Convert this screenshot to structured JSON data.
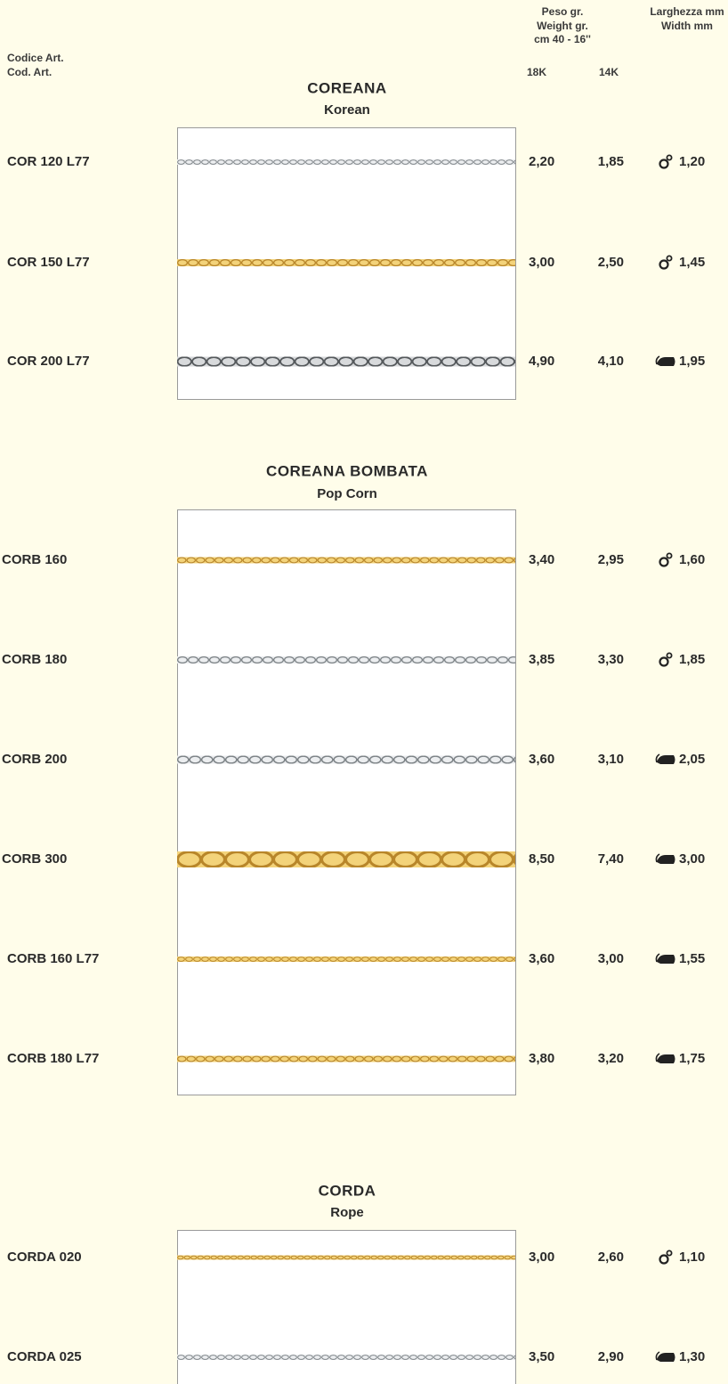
{
  "header": {
    "code_label_it": "Codice Art.",
    "code_label_en": "Cod. Art.",
    "weight_it": "Peso gr.",
    "weight_en": "Weight gr.",
    "length": "cm 40 - 16''",
    "karat_18": "18K",
    "karat_14": "14K",
    "width_it": "Larghezza mm",
    "width_en": "Width mm"
  },
  "sections": [
    {
      "title": "COREANA",
      "subtitle": "Korean",
      "rows": [
        {
          "code": "COR 120 L77",
          "weight_18k": "2,20",
          "weight_14k": "1,85",
          "width": "1,20"
        },
        {
          "code": "COR 150 L77",
          "weight_18k": "3,00",
          "weight_14k": "2,50",
          "width": "1,45"
        },
        {
          "code": "COR 200 L77",
          "weight_18k": "4,90",
          "weight_14k": "4,10",
          "width": "1,95"
        }
      ]
    },
    {
      "title": "COREANA BOMBATA",
      "subtitle": "Pop Corn",
      "rows": [
        {
          "code": "CORB 160",
          "weight_18k": "3,40",
          "weight_14k": "2,95",
          "width": "1,60"
        },
        {
          "code": "CORB 180",
          "weight_18k": "3,85",
          "weight_14k": "3,30",
          "width": "1,85"
        },
        {
          "code": "CORB 200",
          "weight_18k": "3,60",
          "weight_14k": "3,10",
          "width": "2,05"
        },
        {
          "code": "CORB 300",
          "weight_18k": "8,50",
          "weight_14k": "7,40",
          "width": "3,00"
        },
        {
          "code": "CORB 160 L77",
          "weight_18k": "3,60",
          "weight_14k": "3,00",
          "width": "1,55"
        },
        {
          "code": "CORB 180 L77",
          "weight_18k": "3,80",
          "weight_14k": "3,20",
          "width": "1,75"
        }
      ]
    },
    {
      "title": "CORDA",
      "subtitle": "Rope",
      "rows": [
        {
          "code": "CORDA 020",
          "weight_18k": "3,00",
          "weight_14k": "2,60",
          "width": "1,10"
        },
        {
          "code": "CORDA 025",
          "weight_18k": "3,50",
          "weight_14k": "2,90",
          "width": "1,30"
        }
      ]
    }
  ]
}
